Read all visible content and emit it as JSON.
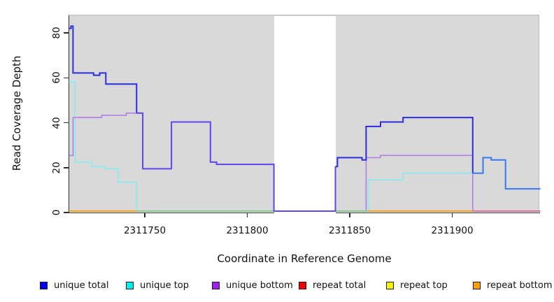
{
  "figure_title": "",
  "axes": {
    "x_label": "Coordinate in Reference Genome",
    "y_label": "Read Coverage Depth",
    "x_ticks": [
      2311750,
      2311800,
      2311850,
      2311900
    ],
    "y_ticks": [
      0,
      20,
      40,
      60,
      80
    ]
  },
  "legend": {
    "items": [
      {
        "label": "unique total",
        "color": "#0000f2"
      },
      {
        "label": "unique top",
        "color": "#00eef2"
      },
      {
        "label": "unique bottom",
        "color": "#a020f0"
      },
      {
        "label": "repeat total",
        "color": "#f20000"
      },
      {
        "label": "repeat top",
        "color": "#f5f500"
      },
      {
        "label": "repeat bottom",
        "color": "#ffa000"
      }
    ]
  },
  "chart_data": {
    "type": "line",
    "subtype": "step-coverage-plot",
    "title": "",
    "xlabel": "Coordinate in Reference Genome",
    "ylabel": "Read Coverage Depth",
    "xlim": [
      2311713,
      2311943
    ],
    "ylim": [
      0,
      87
    ],
    "x_tick_values": [
      2311750,
      2311800,
      2311850,
      2311900
    ],
    "y_tick_values": [
      0,
      20,
      40,
      60,
      80
    ],
    "grid": false,
    "legend_position": "bottom",
    "panel_background": "#d9d9d9",
    "no_data_region": {
      "from": 2311813,
      "to": 2311843,
      "fill": "#ffffff"
    },
    "series": [
      {
        "name": "unique total",
        "legend_color": "#0000f2",
        "steps": [
          [
            2311713,
            82
          ],
          [
            2311714,
            83
          ],
          [
            2311715,
            62
          ],
          [
            2311725,
            61
          ],
          [
            2311728,
            62
          ],
          [
            2311731,
            57
          ],
          [
            2311746,
            44
          ],
          [
            2311749,
            19
          ],
          [
            2311763,
            40
          ],
          [
            2311782,
            22
          ],
          [
            2311785,
            21
          ],
          [
            2311813,
            0
          ],
          [
            2311843,
            20
          ],
          [
            2311844,
            24
          ],
          [
            2311856,
            23
          ],
          [
            2311858,
            38
          ],
          [
            2311865,
            40
          ],
          [
            2311876,
            42
          ],
          [
            2311910,
            17
          ],
          [
            2311915,
            24
          ],
          [
            2311919,
            23
          ],
          [
            2311926,
            10
          ]
        ],
        "end": 2311943
      },
      {
        "name": "unique top",
        "legend_color": "#00eef2",
        "steps": [
          [
            2311713,
            58
          ],
          [
            2311716,
            22
          ],
          [
            2311724,
            20
          ],
          [
            2311731,
            19
          ],
          [
            2311737,
            13
          ],
          [
            2311746,
            0
          ],
          [
            2311843,
            0
          ],
          [
            2311859,
            14
          ],
          [
            2311876,
            17
          ],
          [
            2311910,
            17
          ],
          [
            2311915,
            24
          ],
          [
            2311919,
            23
          ],
          [
            2311926,
            10
          ]
        ],
        "end": 2311943
      },
      {
        "name": "unique bottom",
        "legend_color": "#a020f0",
        "steps": [
          [
            2311713,
            25
          ],
          [
            2311715,
            42
          ],
          [
            2311729,
            43
          ],
          [
            2311741,
            44
          ],
          [
            2311749,
            19
          ],
          [
            2311763,
            40
          ],
          [
            2311782,
            22
          ],
          [
            2311785,
            21
          ],
          [
            2311813,
            0
          ],
          [
            2311843,
            0
          ],
          [
            2311858,
            24
          ],
          [
            2311865,
            25
          ],
          [
            2311910,
            0
          ]
        ],
        "end": 2311943
      },
      {
        "name": "repeat total",
        "legend_color": "#f20000",
        "steps": [
          [
            2311713,
            0
          ]
        ],
        "end": 2311943
      },
      {
        "name": "repeat top",
        "legend_color": "#f5f500",
        "steps": [
          [
            2311713,
            0
          ]
        ],
        "end": 2311943
      },
      {
        "name": "repeat bottom",
        "legend_color": "#ffa000",
        "steps": [
          [
            2311713,
            0
          ]
        ],
        "end": 2311943
      }
    ],
    "render_lines": [
      {
        "name": "unique-top-left",
        "color": "#87ecef",
        "width": 1.6,
        "steps": [
          [
            2311713,
            58
          ],
          [
            2311716,
            22
          ],
          [
            2311724,
            20
          ],
          [
            2311731,
            19
          ],
          [
            2311737,
            13
          ],
          [
            2311746,
            0
          ]
        ],
        "end": 2311813
      },
      {
        "name": "unique-top-right",
        "color": "#87ecef",
        "width": 1.6,
        "steps": [
          [
            2311843,
            0
          ],
          [
            2311859,
            14
          ],
          [
            2311876,
            17
          ]
        ],
        "end": 2311910
      },
      {
        "name": "unique-bottom-left",
        "color": "#b37de6",
        "width": 1.6,
        "steps": [
          [
            2311713,
            25
          ],
          [
            2311715,
            42
          ],
          [
            2311729,
            43
          ],
          [
            2311741,
            44
          ],
          [
            2311749,
            19
          ],
          [
            2311763,
            40
          ],
          [
            2311782,
            22
          ],
          [
            2311785,
            21
          ],
          [
            2311813,
            0
          ]
        ],
        "end": 2311813
      },
      {
        "name": "unique-bottom-right",
        "color": "#b37de6",
        "width": 1.6,
        "steps": [
          [
            2311843,
            0
          ],
          [
            2311858,
            24
          ],
          [
            2311865,
            25
          ],
          [
            2311910,
            0
          ]
        ],
        "end": 2311943
      },
      {
        "name": "baseline-overlap-left",
        "color": "#7bc97e",
        "width": 1.7,
        "steps": [
          [
            2311746,
            0
          ]
        ],
        "end": 2311813
      },
      {
        "name": "baseline-overlap-mid",
        "color": "#7bc97e",
        "width": 1.7,
        "steps": [
          [
            2311843,
            0
          ]
        ],
        "end": 2311859
      },
      {
        "name": "repeat-bottom-left",
        "color": "#ff9c10",
        "width": 2.0,
        "steps": [
          [
            2311713,
            0
          ]
        ],
        "end": 2311746
      },
      {
        "name": "repeat-bottom-right",
        "color": "#ff9c10",
        "width": 2.0,
        "steps": [
          [
            2311859,
            0
          ]
        ],
        "end": 2311910
      },
      {
        "name": "baseline-overlap-right",
        "color": "#e2628d",
        "width": 1.7,
        "steps": [
          [
            2311910,
            0
          ]
        ],
        "end": 2311943
      },
      {
        "name": "unique-total-a",
        "color": "#2d2ddf",
        "width": 2.0,
        "steps": [
          [
            2311713,
            82
          ],
          [
            2311714,
            83
          ],
          [
            2311715,
            62
          ],
          [
            2311725,
            61
          ],
          [
            2311728,
            62
          ],
          [
            2311731,
            57
          ],
          [
            2311746,
            44
          ]
        ],
        "end": 2311746
      },
      {
        "name": "unique-total-b",
        "color": "#5e48ea",
        "width": 2.0,
        "steps": [
          [
            2311746,
            44
          ],
          [
            2311749,
            19
          ],
          [
            2311763,
            40
          ],
          [
            2311782,
            22
          ],
          [
            2311785,
            21
          ],
          [
            2311813,
            0
          ],
          [
            2311843,
            20
          ]
        ],
        "end": 2311843
      },
      {
        "name": "unique-total-c",
        "color": "#2d2ddf",
        "width": 2.0,
        "steps": [
          [
            2311843,
            20
          ],
          [
            2311844,
            24
          ],
          [
            2311856,
            23
          ],
          [
            2311858,
            38
          ],
          [
            2311865,
            40
          ],
          [
            2311876,
            42
          ],
          [
            2311910,
            17
          ]
        ],
        "end": 2311910
      },
      {
        "name": "unique-total-d",
        "color": "#3579f2",
        "width": 2.0,
        "steps": [
          [
            2311910,
            17
          ],
          [
            2311915,
            24
          ],
          [
            2311919,
            23
          ],
          [
            2311926,
            10
          ]
        ],
        "end": 2311943
      }
    ]
  }
}
